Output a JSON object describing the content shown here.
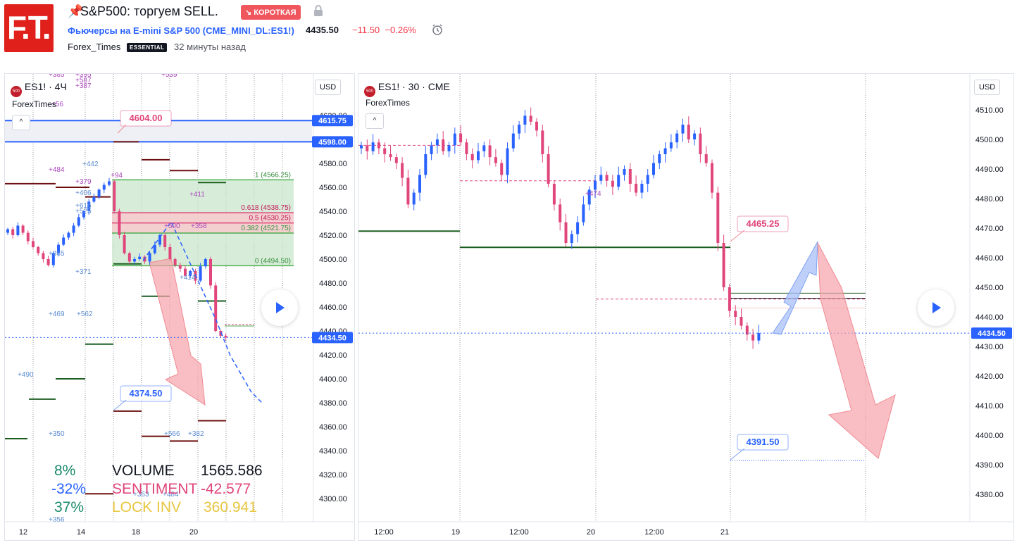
{
  "header": {
    "logo_text": "F.T.",
    "title": "S&P500: торгуем SELL.",
    "badge": "↘ КОРОТКАЯ",
    "symbol_desc": "Фьючерсы на E-mini S&P 500 (CME_MINI_DL:ES1!)",
    "price": "4435.50",
    "change": "−11.50",
    "change_pct": "−0.26%",
    "author": "Forex_Times",
    "author_badge": "ESSENTIAL",
    "published": "32 минуты назад"
  },
  "colors": {
    "accent": "#2962ff",
    "down": "#e0457b",
    "up": "#2962ff",
    "bear_arrow": "#f5a3a9",
    "bull_arrow": "#a8bff7",
    "dark_green": "#1b5e20",
    "dark_red": "#6d0f0f"
  },
  "left_chart": {
    "symbol": "ES1! · 4Ч",
    "indicator": "ForexTimes",
    "currency": "USD",
    "price_axis": [
      "4620.00",
      "4600.00",
      "4580.00",
      "4560.00",
      "4540.00",
      "4520.00",
      "4500.00",
      "4480.00",
      "4460.00",
      "4440.00",
      "4420.00",
      "4400.00",
      "4380.00",
      "4360.00",
      "4340.00",
      "4320.00",
      "4300.00"
    ],
    "time_axis": [
      "12",
      "14",
      "18",
      "20"
    ],
    "tags": {
      "top_red": "4604.00",
      "line_a": "4615.75",
      "line_b": "4598.00",
      "current": "4434.50",
      "target": "4374.50"
    },
    "fib": [
      "1 (4566.25)",
      "0.618 (4538.75)",
      "0.5 (4530.25)",
      "0.382 (4521.75)",
      "0 (4494.50)"
    ],
    "small_labels": [
      "+385",
      "+395",
      "+587",
      "+387",
      "+539",
      "+56",
      "+484",
      "+442",
      "+379",
      "+406",
      "+616",
      "+525",
      "+411",
      "+500",
      "+358",
      "+365",
      "+371",
      "+414",
      "+469",
      "+562",
      "+490",
      "+350",
      "+566",
      "+382",
      "+363",
      "+484",
      "+356",
      "+94"
    ],
    "stats": {
      "p1": "8%",
      "p2": "-32%",
      "p3": "37%",
      "l1": "VOLUME",
      "l2": "SENTIMENT",
      "l3": "LOCK INV",
      "v1": "1565.586",
      "v2": "-42.577",
      "v3": "360.941"
    }
  },
  "right_chart": {
    "symbol": "ES1! · 30 · CME",
    "indicator": "ForexTimes",
    "currency": "USD",
    "price_axis": [
      "4510.00",
      "4500.00",
      "4490.00",
      "4480.00",
      "4470.00",
      "4460.00",
      "4450.00",
      "4440.00",
      "4430.00",
      "4420.00",
      "4410.00",
      "4400.00",
      "4390.00",
      "4380.00"
    ],
    "time_axis": [
      "12:00",
      "19",
      "12:00",
      "20",
      "12:00",
      "21"
    ],
    "tags": {
      "current": "4434.50",
      "top": "4465.25",
      "target": "4391.50"
    },
    "small_labels": [
      "+474"
    ]
  },
  "chart_data": [
    {
      "type": "candlestick",
      "title": "ES1! · 4Ч",
      "ylim": [
        4290,
        4630
      ],
      "ylabel": "USD",
      "close_series": [
        4525,
        4520,
        4528,
        4522,
        4515,
        4510,
        4505,
        4500,
        4495,
        4505,
        4512,
        4518,
        4522,
        4528,
        4535,
        4540,
        4548,
        4552,
        4558,
        4562,
        4565,
        4540,
        4520,
        4505,
        4498,
        4500,
        4502,
        4498,
        4505,
        4512,
        4520,
        4510,
        4500,
        4495,
        4492,
        4486,
        4490,
        4482,
        4494,
        4500,
        4478,
        4440,
        4436,
        4434.5
      ],
      "levels": {
        "resistance_a": 4615.75,
        "resistance_b": 4598.0,
        "target": 4374.5,
        "marked_high": 4604.0,
        "current": 4434.5
      },
      "fibonacci": [
        {
          "level": "1",
          "value": 4566.25
        },
        {
          "level": "0.618",
          "value": 4538.75
        },
        {
          "level": "0.5",
          "value": 4530.25
        },
        {
          "level": "0.382",
          "value": 4521.75
        },
        {
          "level": "0",
          "value": 4494.5
        }
      ]
    },
    {
      "type": "candlestick",
      "title": "ES1! · 30 · CME",
      "ylim": [
        4373,
        4513
      ],
      "ylabel": "USD",
      "close_series": [
        4498,
        4496,
        4499,
        4497,
        4495,
        4494,
        4492,
        4487,
        4478,
        4482,
        4488,
        4495,
        4498,
        4500,
        4496,
        4498,
        4502,
        4499,
        4495,
        4493,
        4496,
        4498,
        4494,
        4492,
        4488,
        4497,
        4502,
        4505,
        4508,
        4506,
        4503,
        4495,
        4485,
        4478,
        4472,
        4465,
        4468,
        4472,
        4478,
        4483,
        4486,
        4488,
        4486,
        4484,
        4488,
        4490,
        4485,
        4482,
        4485,
        4488,
        4492,
        4495,
        4497,
        4499,
        4502,
        4505,
        4500,
        4502,
        4495,
        4492,
        4482,
        4465,
        4450,
        4442,
        4440,
        4437,
        4434,
        4432,
        4434.5
      ],
      "levels": {
        "top": 4465.25,
        "target": 4391.5,
        "current": 4434.5
      }
    }
  ]
}
